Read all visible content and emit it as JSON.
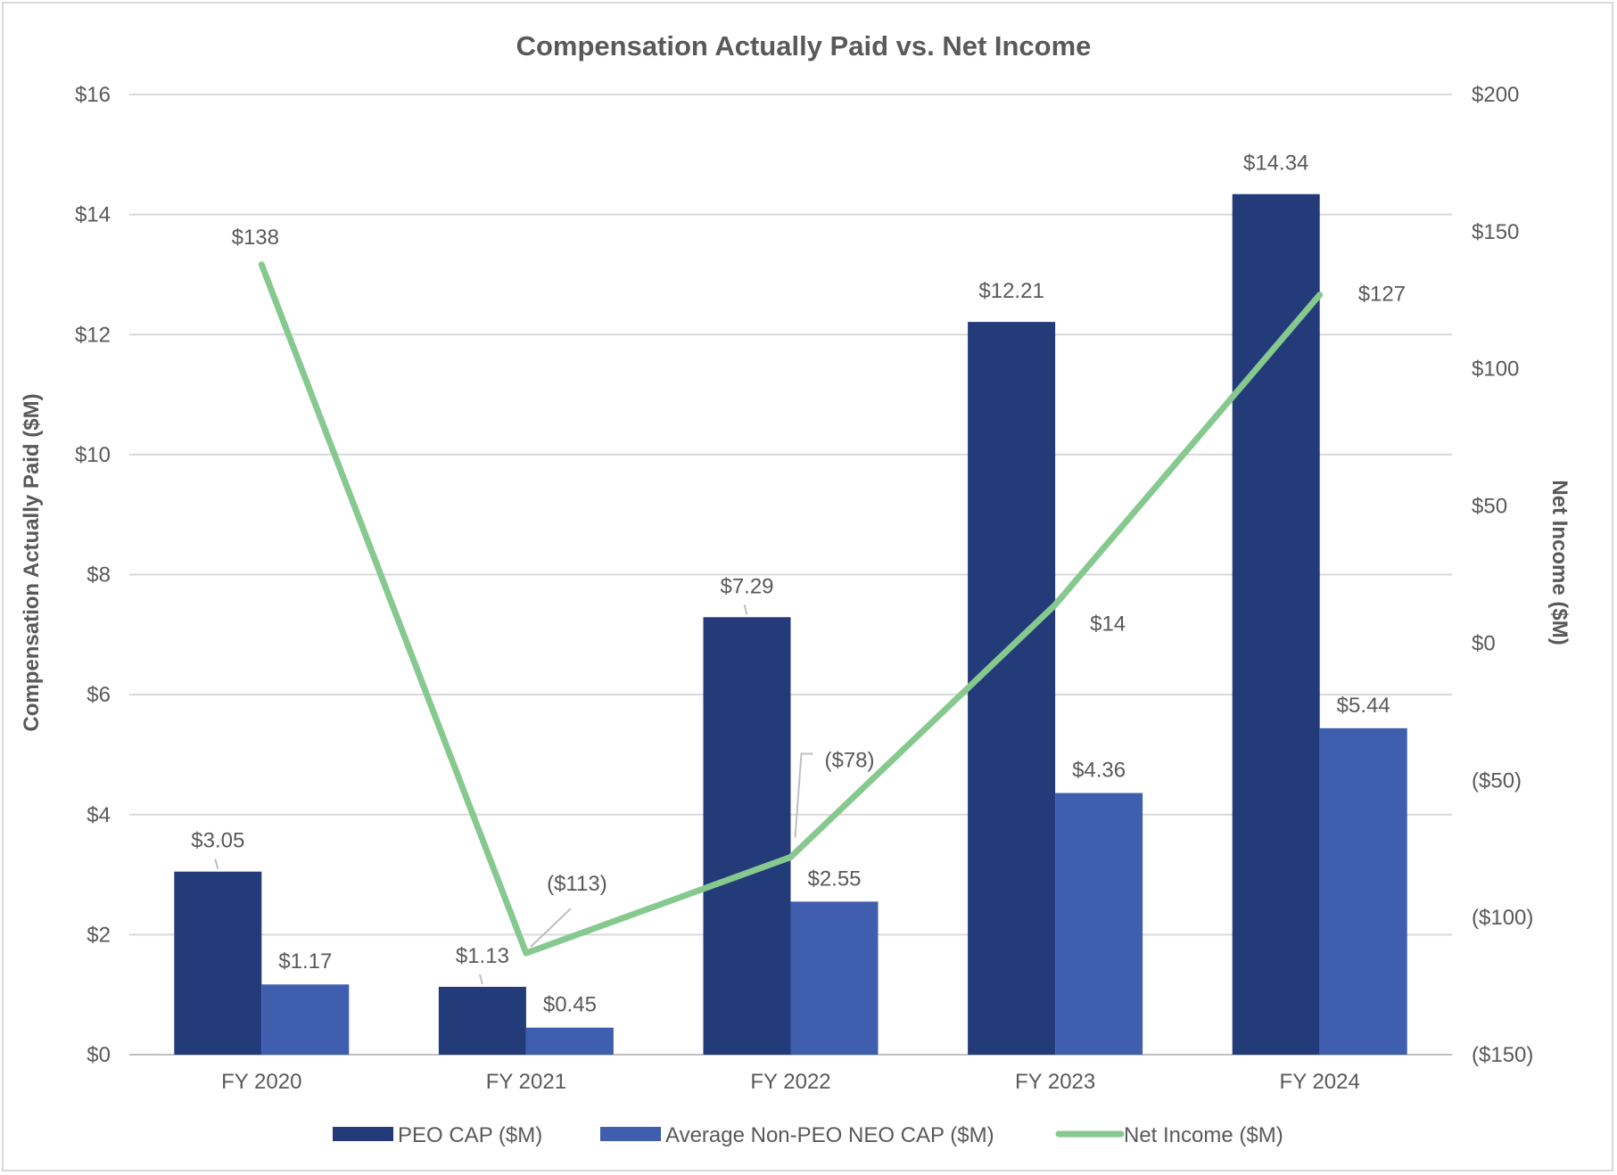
{
  "chart_data": {
    "type": "bar+line",
    "title": "Compensation Actually Paid vs. Net Income",
    "categories": [
      "FY 2020",
      "FY 2021",
      "FY 2022",
      "FY 2023",
      "FY 2024"
    ],
    "y_left": {
      "label": "Compensation Actually Paid ($M)",
      "range": [
        0,
        16
      ],
      "ticks": [
        0,
        2,
        4,
        6,
        8,
        10,
        12,
        14,
        16
      ],
      "tick_labels": [
        "$0",
        "$2",
        "$4",
        "$6",
        "$8",
        "$10",
        "$12",
        "$14",
        "$16"
      ]
    },
    "y_right": {
      "label": "Net Income ($M)",
      "range": [
        -150,
        200
      ],
      "ticks": [
        -150,
        -100,
        -50,
        0,
        50,
        100,
        150,
        200
      ],
      "tick_labels": [
        "($150)",
        "($100)",
        "($50)",
        "$0",
        "$50",
        "$100",
        "$150",
        "$200"
      ]
    },
    "series": [
      {
        "name": "PEO CAP ($M)",
        "type": "bar",
        "axis": "left",
        "color": "#233b78",
        "values": [
          3.05,
          1.13,
          7.29,
          12.21,
          14.34
        ],
        "labels": [
          "$3.05",
          "$1.13",
          "$7.29",
          "$12.21",
          "$14.34"
        ]
      },
      {
        "name": "Average Non-PEO NEO CAP ($M)",
        "type": "bar",
        "axis": "left",
        "color": "#3f5eae",
        "values": [
          1.17,
          0.45,
          2.55,
          4.36,
          5.44
        ],
        "labels": [
          "$1.17",
          "$0.45",
          "$2.55",
          "$4.36",
          "$5.44"
        ]
      },
      {
        "name": "Net Income ($M)",
        "type": "line",
        "axis": "right",
        "color": "#86c98f",
        "values": [
          138,
          -113,
          -78,
          14,
          127
        ],
        "labels": [
          "$138",
          "($113)",
          "($78)",
          "$14",
          "$127"
        ]
      }
    ],
    "negative_color": "#c00000",
    "text_color": "#595959",
    "grid": true,
    "legend": "bottom"
  }
}
